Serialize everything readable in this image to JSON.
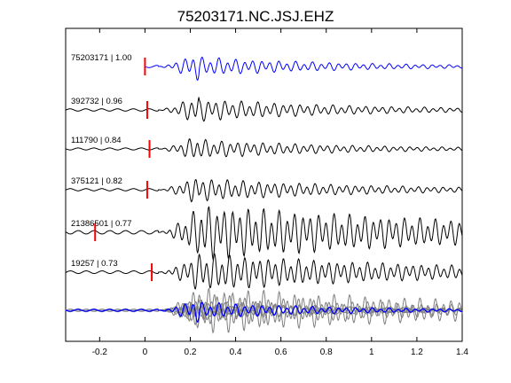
{
  "chart_data": {
    "type": "line",
    "title": "75203171.NC.JSJ.EHZ",
    "xlabel": "",
    "ylabel": "",
    "xlim": [
      -0.35,
      1.4
    ],
    "x_ticks": [
      -0.2,
      0,
      0.2,
      0.4,
      0.6,
      0.8,
      1,
      1.2,
      1.4
    ],
    "x_tick_labels": [
      "-0.2",
      "0",
      "0.2",
      "0.4",
      "0.6",
      "0.8",
      "1",
      "1.2",
      "1.4"
    ],
    "grid": false,
    "legend": "none",
    "colors": {
      "reference": "#0000ff",
      "trace": "#000000",
      "pick": "#ff0000",
      "stack": "#7f7f7f"
    },
    "traces": [
      {
        "label": "75203171 | 1.00",
        "event_id": "75203171",
        "correlation": 1.0,
        "pick_time": 0.0,
        "color": "#0000ff"
      },
      {
        "label": "392732 | 0.96",
        "event_id": "392732",
        "correlation": 0.96,
        "pick_time": 0.01,
        "color": "#000000"
      },
      {
        "label": "111790 | 0.84",
        "event_id": "111790",
        "correlation": 0.84,
        "pick_time": 0.02,
        "color": "#000000"
      },
      {
        "label": "375121 | 0.82",
        "event_id": "375121",
        "correlation": 0.82,
        "pick_time": 0.01,
        "color": "#000000"
      },
      {
        "label": "21386501 | 0.77",
        "event_id": "21386501",
        "correlation": 0.77,
        "pick_time": -0.22,
        "color": "#000000"
      },
      {
        "label": "19257 | 0.73",
        "event_id": "19257",
        "correlation": 0.73,
        "pick_time": 0.03,
        "color": "#000000"
      }
    ],
    "stack": {
      "overlay_of_all_traces": true
    }
  }
}
